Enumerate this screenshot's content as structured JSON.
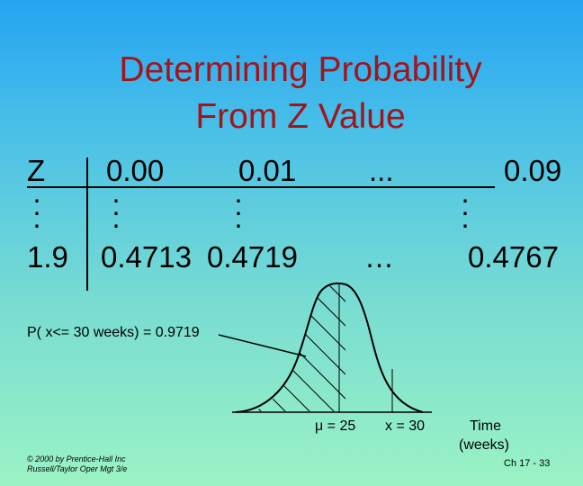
{
  "slide": {
    "title_line1": "Determining Probability",
    "title_line2": "From Z Value"
  },
  "table": {
    "headers": [
      "Z",
      "0.00",
      "0.01",
      "...",
      "0.09"
    ],
    "vdots": "⋅\n⋅\n⋅",
    "row": [
      "1.9",
      "0.4713",
      "0.4719",
      "…",
      "0.4767"
    ]
  },
  "annotation": {
    "probability": "P( x<= 30 weeks) = 0.9719"
  },
  "curve_labels": {
    "mean": "μ = 25",
    "x_value": "x = 30",
    "axis_line1": "Time",
    "axis_line2": "(weeks)"
  },
  "footer": {
    "credit_line1": "© 2000 by Prentice-Hall Inc",
    "credit_line2": "Russell/Taylor  Oper Mgt 3/e",
    "page": "Ch 17 - 33"
  },
  "colors": {
    "title": "#a2151b",
    "background_top": "#25a4f2",
    "background_bottom": "#9bf3c4"
  }
}
